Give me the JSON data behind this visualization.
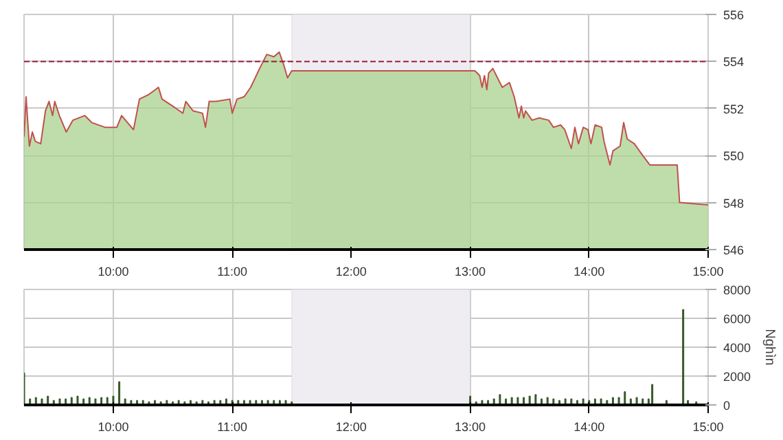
{
  "chart_data": [
    {
      "type": "area",
      "xlim": [
        9.25,
        15
      ],
      "xticks": [
        {
          "value": 10,
          "label": "10:00"
        },
        {
          "value": 11,
          "label": "11:00"
        },
        {
          "value": 12,
          "label": "12:00"
        },
        {
          "value": 13,
          "label": "13:00"
        },
        {
          "value": 14,
          "label": "14:00"
        },
        {
          "value": 15,
          "label": "15:00"
        }
      ],
      "ylim": [
        546,
        556
      ],
      "yticks": [
        546,
        548,
        550,
        552,
        554,
        556
      ],
      "grid": true,
      "bands": [
        {
          "axis": "x",
          "from": 11.5,
          "to": 13,
          "color": "#efedf2"
        }
      ],
      "ref_lines": [
        {
          "axis": "y",
          "value": 554,
          "color": "#9b1b3b",
          "line_style": "dashed"
        }
      ],
      "x": [
        9.25,
        9.267,
        9.295,
        9.32,
        9.345,
        9.39,
        9.43,
        9.46,
        9.49,
        9.508,
        9.547,
        9.605,
        9.66,
        9.76,
        9.82,
        9.93,
        10.03,
        10.07,
        10.17,
        10.22,
        10.3,
        10.38,
        10.41,
        10.5,
        10.585,
        10.61,
        10.67,
        10.75,
        10.775,
        10.806,
        10.864,
        10.98,
        11.0,
        11.04,
        11.1,
        11.155,
        11.23,
        11.29,
        11.35,
        11.395,
        11.43,
        11.465,
        11.5,
        13.0,
        13.04,
        13.08,
        13.1,
        13.12,
        13.14,
        13.155,
        13.19,
        13.27,
        13.33,
        13.37,
        13.41,
        13.43,
        13.45,
        13.465,
        13.52,
        13.58,
        13.66,
        13.7,
        13.76,
        13.795,
        13.85,
        13.88,
        13.91,
        13.95,
        13.99,
        14.015,
        14.05,
        14.105,
        14.125,
        14.175,
        14.2,
        14.26,
        14.29,
        14.32,
        14.38,
        14.45,
        14.51,
        14.74,
        14.76,
        15.0
      ],
      "series": [
        {
          "type": "area",
          "color": "#a9d18e",
          "values": [
            550.8,
            552.5,
            550.4,
            551.0,
            550.6,
            550.5,
            551.9,
            552.3,
            551.7,
            552.3,
            551.7,
            551.0,
            551.5,
            551.7,
            551.4,
            551.2,
            551.2,
            551.7,
            551.1,
            552.4,
            552.6,
            552.9,
            552.4,
            552.1,
            551.8,
            552.3,
            551.9,
            551.8,
            551.2,
            552.3,
            552.3,
            552.4,
            551.8,
            552.4,
            552.5,
            552.9,
            553.7,
            554.3,
            554.2,
            554.4,
            553.9,
            553.3,
            553.6,
            553.6,
            553.6,
            553.4,
            552.9,
            553.4,
            552.8,
            553.5,
            553.7,
            552.9,
            553.1,
            552.5,
            551.6,
            552.1,
            551.6,
            551.9,
            551.5,
            551.6,
            551.5,
            551.2,
            551.3,
            551.1,
            550.3,
            551.2,
            550.5,
            551.2,
            551.1,
            550.5,
            551.3,
            551.2,
            550.6,
            549.6,
            550.2,
            550.4,
            551.4,
            550.7,
            550.5,
            550.0,
            549.6,
            549.6,
            548.0,
            547.9
          ]
        },
        {
          "type": "line",
          "color": "#c0504d",
          "values": [
            550.8,
            552.5,
            550.4,
            551.0,
            550.6,
            550.5,
            551.9,
            552.3,
            551.7,
            552.3,
            551.7,
            551.0,
            551.5,
            551.7,
            551.4,
            551.2,
            551.2,
            551.7,
            551.1,
            552.4,
            552.6,
            552.9,
            552.4,
            552.1,
            551.8,
            552.3,
            551.9,
            551.8,
            551.2,
            552.3,
            552.3,
            552.4,
            551.8,
            552.4,
            552.5,
            552.9,
            553.7,
            554.3,
            554.2,
            554.4,
            553.9,
            553.3,
            553.6,
            553.6,
            553.6,
            553.4,
            552.9,
            553.4,
            552.8,
            553.5,
            553.7,
            552.9,
            553.1,
            552.5,
            551.6,
            552.1,
            551.6,
            551.9,
            551.5,
            551.6,
            551.5,
            551.2,
            551.3,
            551.1,
            550.3,
            551.2,
            550.5,
            551.2,
            551.1,
            550.5,
            551.3,
            551.2,
            550.6,
            549.6,
            550.2,
            550.4,
            551.4,
            550.7,
            550.5,
            550.0,
            549.6,
            549.6,
            548.0,
            547.9
          ]
        }
      ]
    },
    {
      "type": "bar",
      "y2label": "Nghìn",
      "xlim": [
        9.25,
        15
      ],
      "xticks": [
        {
          "value": 10,
          "label": "10:00"
        },
        {
          "value": 11,
          "label": "11:00"
        },
        {
          "value": 12,
          "label": "12:00"
        },
        {
          "value": 13,
          "label": "13:00"
        },
        {
          "value": 14,
          "label": "14:00"
        },
        {
          "value": 15,
          "label": "15:00"
        }
      ],
      "ylim": [
        0,
        8000
      ],
      "yticks": [
        0,
        2000,
        4000,
        6000,
        8000
      ],
      "grid": true,
      "bands": [
        {
          "axis": "x",
          "from": 11.5,
          "to": 13,
          "color": "#efedf2"
        }
      ],
      "x": [
        9.25,
        9.3,
        9.35,
        9.4,
        9.45,
        9.5,
        9.55,
        9.6,
        9.65,
        9.7,
        9.75,
        9.8,
        9.85,
        9.9,
        9.95,
        10.0,
        10.05,
        10.1,
        10.15,
        10.2,
        10.25,
        10.3,
        10.35,
        10.4,
        10.45,
        10.5,
        10.55,
        10.6,
        10.65,
        10.7,
        10.75,
        10.8,
        10.85,
        10.9,
        10.95,
        11.0,
        11.05,
        11.1,
        11.15,
        11.2,
        11.25,
        11.3,
        11.35,
        11.4,
        11.45,
        11.5,
        13.0,
        13.05,
        13.1,
        13.15,
        13.2,
        13.25,
        13.3,
        13.35,
        13.4,
        13.45,
        13.5,
        13.55,
        13.6,
        13.65,
        13.7,
        13.75,
        13.8,
        13.85,
        13.9,
        13.95,
        14.0,
        14.05,
        14.1,
        14.15,
        14.2,
        14.25,
        14.3,
        14.35,
        14.4,
        14.45,
        14.5,
        14.53,
        14.65,
        14.79,
        14.83,
        14.9
      ],
      "series": [
        {
          "color": "#3a5a2a",
          "values": [
            2200,
            400,
            500,
            400,
            600,
            300,
            400,
            400,
            500,
            600,
            400,
            500,
            400,
            500,
            500,
            600,
            1600,
            400,
            300,
            300,
            300,
            200,
            300,
            200,
            300,
            200,
            300,
            200,
            300,
            200,
            300,
            200,
            300,
            300,
            400,
            300,
            300,
            300,
            300,
            300,
            300,
            300,
            300,
            300,
            300,
            200,
            600,
            200,
            300,
            300,
            400,
            700,
            400,
            500,
            500,
            500,
            600,
            700,
            400,
            500,
            400,
            300,
            400,
            400,
            300,
            400,
            300,
            400,
            400,
            300,
            500,
            500,
            900,
            400,
            500,
            400,
            400,
            1400,
            300,
            6600,
            300,
            200
          ]
        }
      ]
    }
  ]
}
